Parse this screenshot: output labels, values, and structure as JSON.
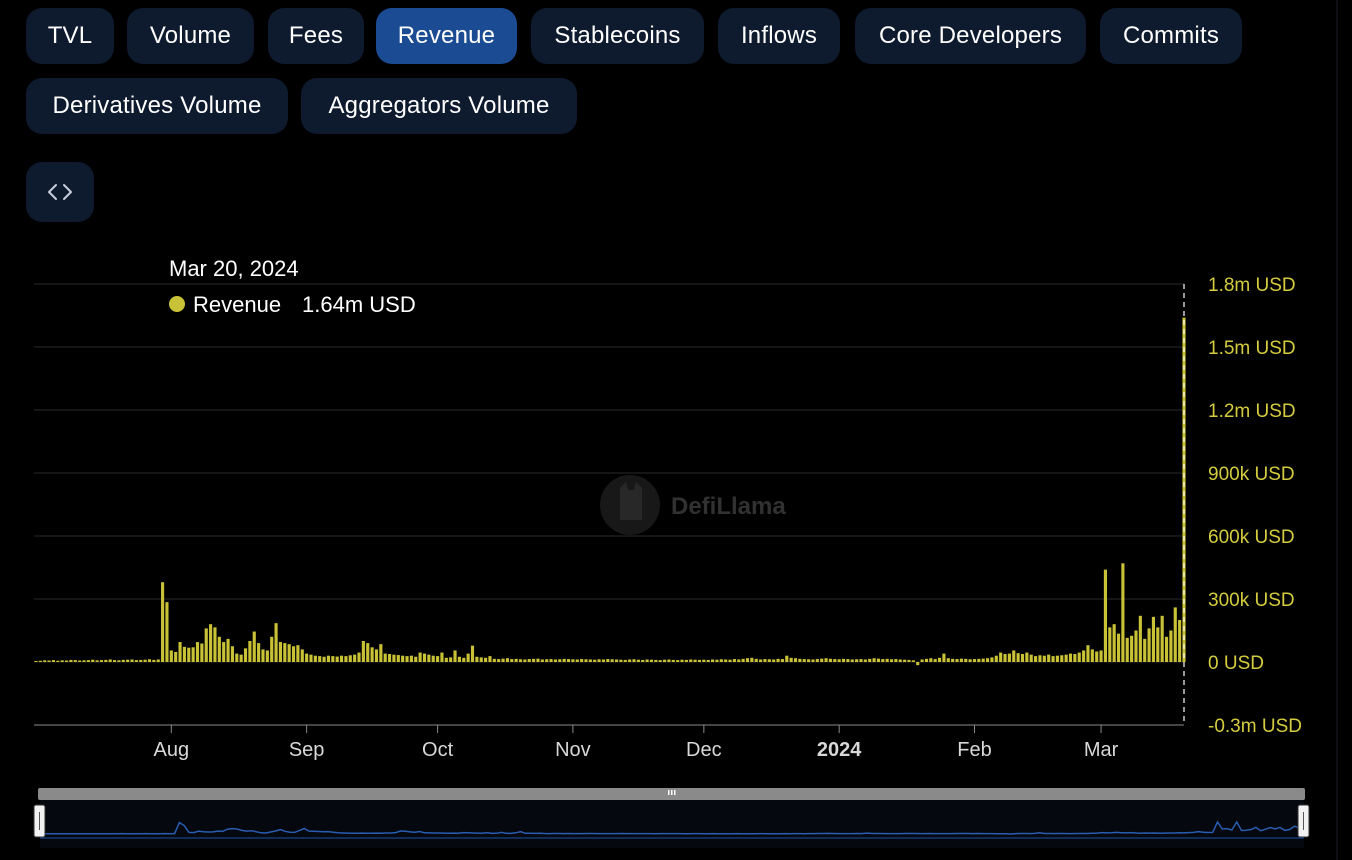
{
  "tabs": [
    {
      "label": "TVL",
      "active": false
    },
    {
      "label": "Volume",
      "active": false
    },
    {
      "label": "Fees",
      "active": false
    },
    {
      "label": "Revenue",
      "active": true
    },
    {
      "label": "Stablecoins",
      "active": false
    },
    {
      "label": "Inflows",
      "active": false
    },
    {
      "label": "Core Developers",
      "active": false
    },
    {
      "label": "Commits",
      "active": false
    },
    {
      "label": "Derivatives Volume",
      "active": false
    },
    {
      "label": "Aggregators Volume",
      "active": false
    }
  ],
  "embed_icon": "code-brackets-icon",
  "tooltip": {
    "date": "Mar 20, 2024",
    "series_name": "Revenue",
    "value_text": "1.64m USD"
  },
  "watermark": "DefiLlama",
  "colors": {
    "bar": "#c9c236",
    "tab_bg": "#0e1a2e",
    "tab_active": "#1b4b92",
    "axis_text": "#d4cc3e",
    "brush_line": "#1f4fa0"
  },
  "chart_data": {
    "type": "bar",
    "title": "",
    "series": [
      {
        "name": "Revenue",
        "color": "#c9c236"
      }
    ],
    "x_range": [
      "2023-07-01",
      "2024-03-20"
    ],
    "ylim": [
      -300000,
      1800000
    ],
    "y_ticks": [
      {
        "value": 1800000,
        "label": "1.8m USD"
      },
      {
        "value": 1500000,
        "label": "1.5m USD"
      },
      {
        "value": 1200000,
        "label": "1.2m USD"
      },
      {
        "value": 900000,
        "label": "900k USD"
      },
      {
        "value": 600000,
        "label": "600k USD"
      },
      {
        "value": 300000,
        "label": "300k USD"
      },
      {
        "value": 0,
        "label": "0 USD"
      },
      {
        "value": -300000,
        "label": "-0.3m USD"
      }
    ],
    "x_ticks": [
      {
        "date": "2023-08-01",
        "label": "Aug",
        "bold": false
      },
      {
        "date": "2023-09-01",
        "label": "Sep",
        "bold": false
      },
      {
        "date": "2023-10-01",
        "label": "Oct",
        "bold": false
      },
      {
        "date": "2023-11-01",
        "label": "Nov",
        "bold": false
      },
      {
        "date": "2023-12-01",
        "label": "Dec",
        "bold": false
      },
      {
        "date": "2024-01-01",
        "label": "2024",
        "bold": true
      },
      {
        "date": "2024-02-01",
        "label": "Feb",
        "bold": false
      },
      {
        "date": "2024-03-01",
        "label": "Mar",
        "bold": false
      }
    ],
    "grid": true,
    "highlight_date": "2024-03-20",
    "daily_values": [
      [
        "2023-07-01",
        5000
      ],
      [
        "2023-07-02",
        6000
      ],
      [
        "2023-07-03",
        8000
      ],
      [
        "2023-07-04",
        7000
      ],
      [
        "2023-07-05",
        9000
      ],
      [
        "2023-07-06",
        6000
      ],
      [
        "2023-07-07",
        8000
      ],
      [
        "2023-07-08",
        7000
      ],
      [
        "2023-07-09",
        10000
      ],
      [
        "2023-07-10",
        9000
      ],
      [
        "2023-07-11",
        7000
      ],
      [
        "2023-07-12",
        8000
      ],
      [
        "2023-07-13",
        9000
      ],
      [
        "2023-07-14",
        11000
      ],
      [
        "2023-07-15",
        8000
      ],
      [
        "2023-07-16",
        9000
      ],
      [
        "2023-07-17",
        10000
      ],
      [
        "2023-07-18",
        12000
      ],
      [
        "2023-07-19",
        9000
      ],
      [
        "2023-07-20",
        8000
      ],
      [
        "2023-07-21",
        10000
      ],
      [
        "2023-07-22",
        11000
      ],
      [
        "2023-07-23",
        12000
      ],
      [
        "2023-07-24",
        9000
      ],
      [
        "2023-07-25",
        10000
      ],
      [
        "2023-07-26",
        11000
      ],
      [
        "2023-07-27",
        13000
      ],
      [
        "2023-07-28",
        10000
      ],
      [
        "2023-07-29",
        12000
      ],
      [
        "2023-07-30",
        380000
      ],
      [
        "2023-07-31",
        285000
      ],
      [
        "2023-08-01",
        55000
      ],
      [
        "2023-08-02",
        48000
      ],
      [
        "2023-08-03",
        95000
      ],
      [
        "2023-08-04",
        72000
      ],
      [
        "2023-08-05",
        68000
      ],
      [
        "2023-08-06",
        70000
      ],
      [
        "2023-08-07",
        95000
      ],
      [
        "2023-08-08",
        88000
      ],
      [
        "2023-08-09",
        160000
      ],
      [
        "2023-08-10",
        180000
      ],
      [
        "2023-08-11",
        165000
      ],
      [
        "2023-08-12",
        120000
      ],
      [
        "2023-08-13",
        95000
      ],
      [
        "2023-08-14",
        110000
      ],
      [
        "2023-08-15",
        75000
      ],
      [
        "2023-08-16",
        40000
      ],
      [
        "2023-08-17",
        35000
      ],
      [
        "2023-08-18",
        65000
      ],
      [
        "2023-08-19",
        100000
      ],
      [
        "2023-08-20",
        145000
      ],
      [
        "2023-08-21",
        90000
      ],
      [
        "2023-08-22",
        60000
      ],
      [
        "2023-08-23",
        55000
      ],
      [
        "2023-08-24",
        120000
      ],
      [
        "2023-08-25",
        185000
      ],
      [
        "2023-08-26",
        95000
      ],
      [
        "2023-08-27",
        90000
      ],
      [
        "2023-08-28",
        85000
      ],
      [
        "2023-08-29",
        75000
      ],
      [
        "2023-08-30",
        80000
      ],
      [
        "2023-08-31",
        60000
      ],
      [
        "2023-09-01",
        40000
      ],
      [
        "2023-09-02",
        35000
      ],
      [
        "2023-09-03",
        30000
      ],
      [
        "2023-09-04",
        28000
      ],
      [
        "2023-09-05",
        25000
      ],
      [
        "2023-09-06",
        30000
      ],
      [
        "2023-09-07",
        28000
      ],
      [
        "2023-09-08",
        26000
      ],
      [
        "2023-09-09",
        30000
      ],
      [
        "2023-09-10",
        28000
      ],
      [
        "2023-09-11",
        32000
      ],
      [
        "2023-09-12",
        35000
      ],
      [
        "2023-09-13",
        45000
      ],
      [
        "2023-09-14",
        100000
      ],
      [
        "2023-09-15",
        90000
      ],
      [
        "2023-09-16",
        70000
      ],
      [
        "2023-09-17",
        60000
      ],
      [
        "2023-09-18",
        85000
      ],
      [
        "2023-09-19",
        40000
      ],
      [
        "2023-09-20",
        38000
      ],
      [
        "2023-09-21",
        35000
      ],
      [
        "2023-09-22",
        33000
      ],
      [
        "2023-09-23",
        30000
      ],
      [
        "2023-09-24",
        28000
      ],
      [
        "2023-09-25",
        30000
      ],
      [
        "2023-09-26",
        25000
      ],
      [
        "2023-09-27",
        45000
      ],
      [
        "2023-09-28",
        40000
      ],
      [
        "2023-09-29",
        35000
      ],
      [
        "2023-09-30",
        30000
      ],
      [
        "2023-10-01",
        28000
      ],
      [
        "2023-10-02",
        45000
      ],
      [
        "2023-10-03",
        20000
      ],
      [
        "2023-10-04",
        22000
      ],
      [
        "2023-10-05",
        55000
      ],
      [
        "2023-10-06",
        25000
      ],
      [
        "2023-10-07",
        20000
      ],
      [
        "2023-10-08",
        40000
      ],
      [
        "2023-10-09",
        78000
      ],
      [
        "2023-10-10",
        25000
      ],
      [
        "2023-10-11",
        22000
      ],
      [
        "2023-10-12",
        20000
      ],
      [
        "2023-10-13",
        28000
      ],
      [
        "2023-10-14",
        15000
      ],
      [
        "2023-10-15",
        14000
      ],
      [
        "2023-10-16",
        16000
      ],
      [
        "2023-10-17",
        18000
      ],
      [
        "2023-10-18",
        14000
      ],
      [
        "2023-10-19",
        15000
      ],
      [
        "2023-10-20",
        13000
      ],
      [
        "2023-10-21",
        12000
      ],
      [
        "2023-10-22",
        14000
      ],
      [
        "2023-10-23",
        15000
      ],
      [
        "2023-10-24",
        16000
      ],
      [
        "2023-10-25",
        12000
      ],
      [
        "2023-10-26",
        13000
      ],
      [
        "2023-10-27",
        14000
      ],
      [
        "2023-10-28",
        12000
      ],
      [
        "2023-10-29",
        13000
      ],
      [
        "2023-10-30",
        15000
      ],
      [
        "2023-10-31",
        14000
      ],
      [
        "2023-11-01",
        13000
      ],
      [
        "2023-11-02",
        12000
      ],
      [
        "2023-11-03",
        14000
      ],
      [
        "2023-11-04",
        13000
      ],
      [
        "2023-11-05",
        12000
      ],
      [
        "2023-11-06",
        11000
      ],
      [
        "2023-11-07",
        13000
      ],
      [
        "2023-11-08",
        12000
      ],
      [
        "2023-11-09",
        14000
      ],
      [
        "2023-11-10",
        13000
      ],
      [
        "2023-11-11",
        12000
      ],
      [
        "2023-11-12",
        11000
      ],
      [
        "2023-11-13",
        10000
      ],
      [
        "2023-11-14",
        12000
      ],
      [
        "2023-11-15",
        13000
      ],
      [
        "2023-11-16",
        11000
      ],
      [
        "2023-11-17",
        10000
      ],
      [
        "2023-11-18",
        12000
      ],
      [
        "2023-11-19",
        11000
      ],
      [
        "2023-11-20",
        10000
      ],
      [
        "2023-11-21",
        9000
      ],
      [
        "2023-11-22",
        11000
      ],
      [
        "2023-11-23",
        12000
      ],
      [
        "2023-11-24",
        10000
      ],
      [
        "2023-11-25",
        9000
      ],
      [
        "2023-11-26",
        11000
      ],
      [
        "2023-11-27",
        10000
      ],
      [
        "2023-11-28",
        12000
      ],
      [
        "2023-11-29",
        11000
      ],
      [
        "2023-11-30",
        10000
      ],
      [
        "2023-12-01",
        11000
      ],
      [
        "2023-12-02",
        10000
      ],
      [
        "2023-12-03",
        12000
      ],
      [
        "2023-12-04",
        11000
      ],
      [
        "2023-12-05",
        13000
      ],
      [
        "2023-12-06",
        12000
      ],
      [
        "2023-12-07",
        11000
      ],
      [
        "2023-12-08",
        14000
      ],
      [
        "2023-12-09",
        12000
      ],
      [
        "2023-12-10",
        15000
      ],
      [
        "2023-12-11",
        18000
      ],
      [
        "2023-12-12",
        20000
      ],
      [
        "2023-12-13",
        15000
      ],
      [
        "2023-12-14",
        12000
      ],
      [
        "2023-12-15",
        14000
      ],
      [
        "2023-12-16",
        13000
      ],
      [
        "2023-12-17",
        12000
      ],
      [
        "2023-12-18",
        15000
      ],
      [
        "2023-12-19",
        14000
      ],
      [
        "2023-12-20",
        30000
      ],
      [
        "2023-12-21",
        20000
      ],
      [
        "2023-12-22",
        18000
      ],
      [
        "2023-12-23",
        15000
      ],
      [
        "2023-12-24",
        14000
      ],
      [
        "2023-12-25",
        13000
      ],
      [
        "2023-12-26",
        12000
      ],
      [
        "2023-12-27",
        14000
      ],
      [
        "2023-12-28",
        16000
      ],
      [
        "2023-12-29",
        18000
      ],
      [
        "2023-12-30",
        15000
      ],
      [
        "2023-12-31",
        14000
      ],
      [
        "2024-01-01",
        13000
      ],
      [
        "2024-01-02",
        15000
      ],
      [
        "2024-01-03",
        14000
      ],
      [
        "2024-01-04",
        12000
      ],
      [
        "2024-01-05",
        13000
      ],
      [
        "2024-01-06",
        14000
      ],
      [
        "2024-01-07",
        12000
      ],
      [
        "2024-01-08",
        15000
      ],
      [
        "2024-01-09",
        18000
      ],
      [
        "2024-01-10",
        16000
      ],
      [
        "2024-01-11",
        14000
      ],
      [
        "2024-01-12",
        15000
      ],
      [
        "2024-01-13",
        13000
      ],
      [
        "2024-01-14",
        14000
      ],
      [
        "2024-01-15",
        12000
      ],
      [
        "2024-01-16",
        11000
      ],
      [
        "2024-01-17",
        10000
      ],
      [
        "2024-01-18",
        8000
      ],
      [
        "2024-01-19",
        -15000
      ],
      [
        "2024-01-20",
        12000
      ],
      [
        "2024-01-21",
        15000
      ],
      [
        "2024-01-22",
        18000
      ],
      [
        "2024-01-23",
        14000
      ],
      [
        "2024-01-24",
        20000
      ],
      [
        "2024-01-25",
        40000
      ],
      [
        "2024-01-26",
        18000
      ],
      [
        "2024-01-27",
        15000
      ],
      [
        "2024-01-28",
        14000
      ],
      [
        "2024-01-29",
        16000
      ],
      [
        "2024-01-30",
        15000
      ],
      [
        "2024-01-31",
        13000
      ],
      [
        "2024-02-01",
        14000
      ],
      [
        "2024-02-02",
        15000
      ],
      [
        "2024-02-03",
        16000
      ],
      [
        "2024-02-04",
        18000
      ],
      [
        "2024-02-05",
        22000
      ],
      [
        "2024-02-06",
        30000
      ],
      [
        "2024-02-07",
        45000
      ],
      [
        "2024-02-08",
        38000
      ],
      [
        "2024-02-09",
        40000
      ],
      [
        "2024-02-10",
        55000
      ],
      [
        "2024-02-11",
        42000
      ],
      [
        "2024-02-12",
        38000
      ],
      [
        "2024-02-13",
        45000
      ],
      [
        "2024-02-14",
        35000
      ],
      [
        "2024-02-15",
        28000
      ],
      [
        "2024-02-16",
        32000
      ],
      [
        "2024-02-17",
        30000
      ],
      [
        "2024-02-18",
        35000
      ],
      [
        "2024-02-19",
        28000
      ],
      [
        "2024-02-20",
        30000
      ],
      [
        "2024-02-21",
        32000
      ],
      [
        "2024-02-22",
        35000
      ],
      [
        "2024-02-23",
        40000
      ],
      [
        "2024-02-24",
        38000
      ],
      [
        "2024-02-25",
        45000
      ],
      [
        "2024-02-26",
        55000
      ],
      [
        "2024-02-27",
        80000
      ],
      [
        "2024-02-28",
        60000
      ],
      [
        "2024-02-29",
        50000
      ],
      [
        "2024-03-01",
        55000
      ],
      [
        "2024-03-02",
        440000
      ],
      [
        "2024-03-03",
        165000
      ],
      [
        "2024-03-04",
        180000
      ],
      [
        "2024-03-05",
        135000
      ],
      [
        "2024-03-06",
        470000
      ],
      [
        "2024-03-07",
        115000
      ],
      [
        "2024-03-08",
        125000
      ],
      [
        "2024-03-09",
        150000
      ],
      [
        "2024-03-10",
        220000
      ],
      [
        "2024-03-11",
        110000
      ],
      [
        "2024-03-12",
        160000
      ],
      [
        "2024-03-13",
        215000
      ],
      [
        "2024-03-14",
        165000
      ],
      [
        "2024-03-15",
        220000
      ],
      [
        "2024-03-16",
        120000
      ],
      [
        "2024-03-17",
        150000
      ],
      [
        "2024-03-18",
        260000
      ],
      [
        "2024-03-19",
        200000
      ],
      [
        "2024-03-20",
        1640000
      ]
    ]
  }
}
